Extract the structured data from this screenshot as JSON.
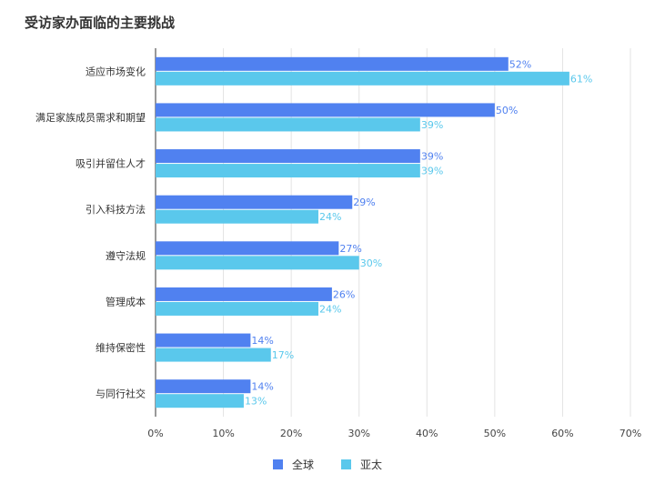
{
  "chart_data": {
    "type": "bar",
    "orientation": "horizontal",
    "title": "受访家办面临的主要挑战",
    "categories": [
      "适应市场变化",
      "满足家族成员需求和期望",
      "吸引并留住人才",
      "引入科技方法",
      "遵守法规",
      "管理成本",
      "维持保密性",
      "与同行社交"
    ],
    "series": [
      {
        "name": "全球",
        "color": "#5081f0",
        "values": [
          52,
          50,
          39,
          29,
          27,
          26,
          14,
          14
        ]
      },
      {
        "name": "亚太",
        "color": "#5ac8ec",
        "values": [
          61,
          39,
          39,
          24,
          30,
          24,
          17,
          13
        ]
      }
    ],
    "xlim": [
      0,
      70
    ],
    "xticks": [
      "0%",
      "10%",
      "20%",
      "30%",
      "40%",
      "50%",
      "60%",
      "70%"
    ],
    "value_suffix": "%",
    "legend_position": "bottom",
    "grid": true
  }
}
